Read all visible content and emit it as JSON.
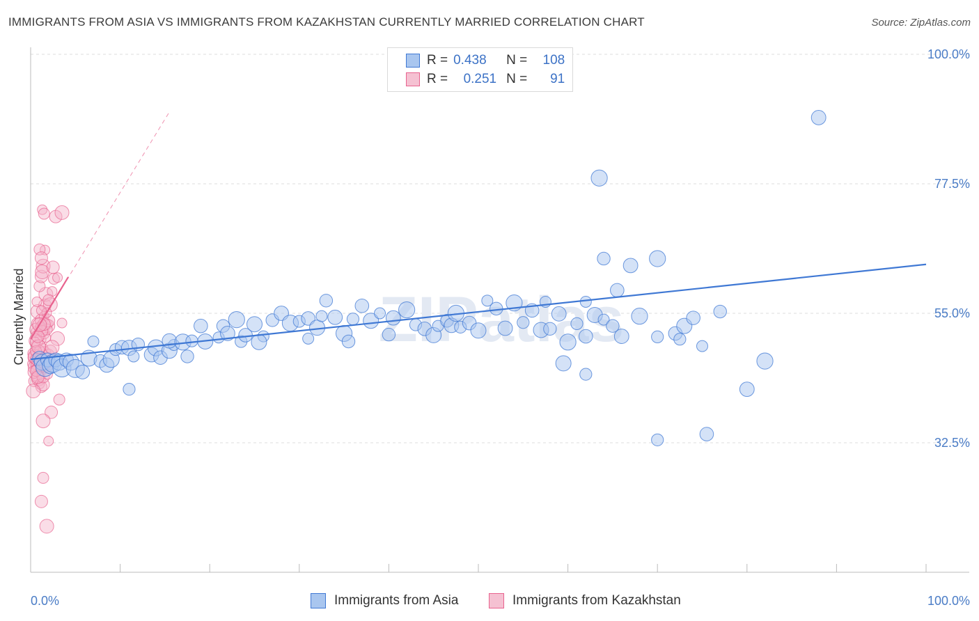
{
  "title": "IMMIGRANTS FROM ASIA VS IMMIGRANTS FROM KAZAKHSTAN CURRENTLY MARRIED CORRELATION CHART",
  "source": "Source: ZipAtlas.com",
  "watermark": "ZIPatlas",
  "colors": {
    "blue": "#3f78d4",
    "blue_fill": "#a9c6ef",
    "pink": "#e8628e",
    "pink_fill": "#f5b4c9",
    "tick_text": "#4a7cc6",
    "grid": "#dddddd"
  },
  "legend_top": [
    {
      "r_label": "R =",
      "r_value": "0.438",
      "n_label": "N =",
      "n_value": "108",
      "color": "blue"
    },
    {
      "r_label": "R =",
      "r_value": "0.251",
      "n_label": "N =",
      "n_value": "91",
      "color": "pink"
    }
  ],
  "legend_bottom": [
    {
      "label": "Immigrants from Asia",
      "color": "blue"
    },
    {
      "label": "Immigrants from Kazakhstan",
      "color": "pink"
    }
  ],
  "chart_data": {
    "type": "scatter",
    "title": "IMMIGRANTS FROM ASIA VS IMMIGRANTS FROM KAZAKHSTAN CURRENTLY MARRIED CORRELATION CHART",
    "xlabel": "",
    "ylabel": "Currently Married",
    "xlim": [
      0,
      100
    ],
    "ylim": [
      10,
      100
    ],
    "x_tick_labels": [
      "0.0%",
      "100.0%"
    ],
    "y_ticks": [
      32.5,
      55.0,
      77.5,
      100.0
    ],
    "y_tick_labels": [
      "32.5%",
      "55.0%",
      "77.5%",
      "100.0%"
    ],
    "grid": true,
    "legend_position": "top-center",
    "series": [
      {
        "name": "Immigrants from Asia",
        "color": "blue",
        "trend": {
          "x": [
            0,
            100
          ],
          "y": [
            47.0,
            63.5
          ],
          "style": "solid"
        },
        "points": [
          [
            1.0,
            47.2
          ],
          [
            1.3,
            46.5
          ],
          [
            1.6,
            45.6
          ],
          [
            1.9,
            46.9
          ],
          [
            2.2,
            45.9
          ],
          [
            2.5,
            46.3
          ],
          [
            2.8,
            46.9
          ],
          [
            3.2,
            46.5
          ],
          [
            3.5,
            45.5
          ],
          [
            4.0,
            46.9
          ],
          [
            4.5,
            46.5
          ],
          [
            5.0,
            45.4
          ],
          [
            5.8,
            44.8
          ],
          [
            6.5,
            47.2
          ],
          [
            7.0,
            50.1
          ],
          [
            7.8,
            46.7
          ],
          [
            8.5,
            46.0
          ],
          [
            9.0,
            47.0
          ],
          [
            9.5,
            48.7
          ],
          [
            10.2,
            49.1
          ],
          [
            11.0,
            49.0
          ],
          [
            11.5,
            47.5
          ],
          [
            12.0,
            49.6
          ],
          [
            13.5,
            47.8
          ],
          [
            14.0,
            49.0
          ],
          [
            11.0,
            41.8
          ],
          [
            14.5,
            47.3
          ],
          [
            15.5,
            48.5
          ],
          [
            16.0,
            49.5
          ],
          [
            17.5,
            47.5
          ],
          [
            15.5,
            50.2
          ],
          [
            17.0,
            50.0
          ],
          [
            18.0,
            50.2
          ],
          [
            19.0,
            52.8
          ],
          [
            19.5,
            50.1
          ],
          [
            21.0,
            50.8
          ],
          [
            21.5,
            52.8
          ],
          [
            22.0,
            51.5
          ],
          [
            23.0,
            53.9
          ],
          [
            23.5,
            50.1
          ],
          [
            24.0,
            51.2
          ],
          [
            25.0,
            53.1
          ],
          [
            26.0,
            51.0
          ],
          [
            27.0,
            53.8
          ],
          [
            28.0,
            55.0
          ],
          [
            29.0,
            53.3
          ],
          [
            30.0,
            53.6
          ],
          [
            31.0,
            54.1
          ],
          [
            32.0,
            52.5
          ],
          [
            32.5,
            54.5
          ],
          [
            33.0,
            57.2
          ],
          [
            34.0,
            54.3
          ],
          [
            35.0,
            51.5
          ],
          [
            36.0,
            54.0
          ],
          [
            37.0,
            56.3
          ],
          [
            38.0,
            53.7
          ],
          [
            39.0,
            55.0
          ],
          [
            40.0,
            51.3
          ],
          [
            40.5,
            54.2
          ],
          [
            42.0,
            55.6
          ],
          [
            43.0,
            53.0
          ],
          [
            44.0,
            52.3
          ],
          [
            45.0,
            51.2
          ],
          [
            45.5,
            52.8
          ],
          [
            46.5,
            53.7
          ],
          [
            47.0,
            52.9
          ],
          [
            47.5,
            55.0
          ],
          [
            48.0,
            52.6
          ],
          [
            49.0,
            53.3
          ],
          [
            50.0,
            52.0
          ],
          [
            51.0,
            57.2
          ],
          [
            52.0,
            55.8
          ],
          [
            53.0,
            52.4
          ],
          [
            54.0,
            56.8
          ],
          [
            55.0,
            53.4
          ],
          [
            56.0,
            55.5
          ],
          [
            57.0,
            52.1
          ],
          [
            57.5,
            57.0
          ],
          [
            58.0,
            52.3
          ],
          [
            59.0,
            54.9
          ],
          [
            60.0,
            50.0
          ],
          [
            61.0,
            53.2
          ],
          [
            62.0,
            51.0
          ],
          [
            63.0,
            54.7
          ],
          [
            64.0,
            53.9
          ],
          [
            65.0,
            52.8
          ],
          [
            66.0,
            51.0
          ],
          [
            68.0,
            54.5
          ],
          [
            70.0,
            50.9
          ],
          [
            72.0,
            51.5
          ],
          [
            73.0,
            52.8
          ],
          [
            75.0,
            49.3
          ],
          [
            77.0,
            55.3
          ],
          [
            80.0,
            41.8
          ],
          [
            82.0,
            46.7
          ],
          [
            62.0,
            44.4
          ],
          [
            65.5,
            59.0
          ],
          [
            59.5,
            46.3
          ],
          [
            62.0,
            57.0
          ],
          [
            64.0,
            64.5
          ],
          [
            67.0,
            63.3
          ],
          [
            70.0,
            64.5
          ],
          [
            72.5,
            50.5
          ],
          [
            74.0,
            54.2
          ],
          [
            25.5,
            50.0
          ],
          [
            31.0,
            50.6
          ],
          [
            35.5,
            50.1
          ],
          [
            88.0,
            89.0
          ],
          [
            63.5,
            78.5
          ],
          [
            70.0,
            33.0
          ],
          [
            75.5,
            34.0
          ]
        ]
      },
      {
        "name": "Immigrants from Kazakhstan",
        "color": "pink",
        "trend": {
          "x": [
            0,
            4.2
          ],
          "y": [
            50.5,
            61.3
          ],
          "style": "solid"
        },
        "trend_dashed": {
          "x": [
            0,
            15.5
          ],
          "y": [
            50.5,
            90.0
          ],
          "style": "dashed"
        },
        "points": [
          [
            0.2,
            46.2
          ],
          [
            0.3,
            48.0
          ],
          [
            0.4,
            47.3
          ],
          [
            0.5,
            45.6
          ],
          [
            0.6,
            49.5
          ],
          [
            0.7,
            51.8
          ],
          [
            0.8,
            53.2
          ],
          [
            0.9,
            46.9
          ],
          [
            1.0,
            44.6
          ],
          [
            0.4,
            43.2
          ],
          [
            0.6,
            52.2
          ],
          [
            0.8,
            55.3
          ],
          [
            0.9,
            47.9
          ],
          [
            1.1,
            50.5
          ],
          [
            1.2,
            53.8
          ],
          [
            1.3,
            45.6
          ],
          [
            1.4,
            48.9
          ],
          [
            1.5,
            51.5
          ],
          [
            1.6,
            56.4
          ],
          [
            1.7,
            58.3
          ],
          [
            0.7,
            57.0
          ],
          [
            1.0,
            59.7
          ],
          [
            1.2,
            61.4
          ],
          [
            1.4,
            63.2
          ],
          [
            1.6,
            66.0
          ],
          [
            1.0,
            66.1
          ],
          [
            1.2,
            64.6
          ],
          [
            1.3,
            62.2
          ],
          [
            1.5,
            54.5
          ],
          [
            1.8,
            53.1
          ],
          [
            2.0,
            52.8
          ],
          [
            0.5,
            47.5
          ],
          [
            0.6,
            46.0
          ],
          [
            0.7,
            45.3
          ],
          [
            0.8,
            44.2
          ],
          [
            0.9,
            43.6
          ],
          [
            1.0,
            42.7
          ],
          [
            1.2,
            42.2
          ],
          [
            1.4,
            42.6
          ],
          [
            0.3,
            41.5
          ],
          [
            0.8,
            46.6
          ],
          [
            1.1,
            47.2
          ],
          [
            1.3,
            46.2
          ],
          [
            1.5,
            48.0
          ],
          [
            1.7,
            50.8
          ],
          [
            1.8,
            52.2
          ],
          [
            2.0,
            53.7
          ],
          [
            2.2,
            56.5
          ],
          [
            2.4,
            58.8
          ],
          [
            2.6,
            61.0
          ],
          [
            0.4,
            44.8
          ],
          [
            0.6,
            50.2
          ],
          [
            1.0,
            48.6
          ],
          [
            1.2,
            45.1
          ],
          [
            1.4,
            44.0
          ],
          [
            1.6,
            46.5
          ],
          [
            1.8,
            55.1
          ],
          [
            2.0,
            57.3
          ],
          [
            2.5,
            63.0
          ],
          [
            3.0,
            50.6
          ],
          [
            3.5,
            53.3
          ],
          [
            2.0,
            47.8
          ],
          [
            2.2,
            48.4
          ],
          [
            2.4,
            49.1
          ],
          [
            1.3,
            73.0
          ],
          [
            1.5,
            72.3
          ],
          [
            2.8,
            71.8
          ],
          [
            3.5,
            72.5
          ],
          [
            3.0,
            61.2
          ],
          [
            3.2,
            40.0
          ],
          [
            2.3,
            37.8
          ],
          [
            1.4,
            36.3
          ],
          [
            2.0,
            32.8
          ],
          [
            1.4,
            26.4
          ],
          [
            1.2,
            22.3
          ],
          [
            1.8,
            18.0
          ],
          [
            0.5,
            50.0
          ],
          [
            0.6,
            48.4
          ],
          [
            0.7,
            47.0
          ],
          [
            0.9,
            49.2
          ],
          [
            1.1,
            52.7
          ],
          [
            1.3,
            51.9
          ],
          [
            1.5,
            53.1
          ],
          [
            1.7,
            45.9
          ],
          [
            1.9,
            44.4
          ],
          [
            2.1,
            46.6
          ],
          [
            0.8,
            51.0
          ],
          [
            1.0,
            53.0
          ],
          [
            1.2,
            55.5
          ],
          [
            0.6,
            45.0
          ],
          [
            0.8,
            43.9
          ]
        ]
      }
    ]
  }
}
